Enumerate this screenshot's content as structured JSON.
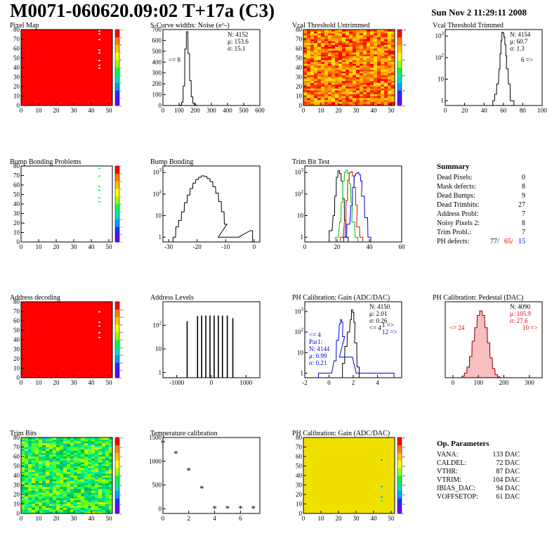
{
  "header": {
    "title": "M0071-060620.09:02 T+17a (C3)",
    "date": "Sun Nov  2 11:29:11 2008"
  },
  "summary": {
    "title": "Summary",
    "rows": [
      {
        "label": "Dead Pixels:",
        "value": "0"
      },
      {
        "label": "Mask defects:",
        "value": "8"
      },
      {
        "label": "Dead Bumps:",
        "value": "9"
      },
      {
        "label": "Dead Trimbits:",
        "value": "27"
      },
      {
        "label": "Address Probl:",
        "value": "7"
      },
      {
        "label": "Noisy Pixels 2:",
        "value": "8"
      },
      {
        "label": "Trim Probl.:",
        "value": "7"
      }
    ],
    "ph_label": "PH defects:",
    "ph_values": [
      "77/",
      "65/",
      "15"
    ],
    "ph_colors": [
      "#000000",
      "#e00000",
      "#0000e0"
    ]
  },
  "op_params": {
    "title": "Op. Parameters",
    "rows": [
      {
        "label": "VANA:",
        "value": "133 DAC"
      },
      {
        "label": "CALDEL:",
        "value": "72 DAC"
      },
      {
        "label": "VTHR:",
        "value": "87 DAC"
      },
      {
        "label": "VTRIM:",
        "value": "104 DAC"
      },
      {
        "label": "IBIAS_DAC:",
        "value": "94 DAC"
      },
      {
        "label": "VOFFSETOP:",
        "value": "61 DAC"
      }
    ]
  },
  "palette": [
    "#6a00ff",
    "#2a2aff",
    "#00a0ff",
    "#00e0c0",
    "#00ff40",
    "#a0ff00",
    "#ffff00",
    "#ffc000",
    "#ff8000",
    "#ff0000"
  ],
  "chart_data": [
    {
      "type": "heatmap",
      "title": "Pixel Map",
      "xlim": [
        0,
        52
      ],
      "ylim": [
        0,
        80
      ],
      "xticks": [
        "0",
        "10",
        "20",
        "30",
        "40",
        "50"
      ],
      "yticks": [
        "0",
        "10",
        "20",
        "30",
        "40",
        "50",
        "60",
        "70",
        "80"
      ],
      "zticks": [
        "0",
        "1",
        "2",
        "3",
        "4",
        "5",
        "6",
        "7",
        "8",
        "9",
        "10"
      ],
      "fill": "#ff0000",
      "spots": [
        {
          "x": 44,
          "y": 78,
          "c": "#ffffff"
        },
        {
          "x": 44,
          "y": 75,
          "c": "#ffffff"
        },
        {
          "x": 44,
          "y": 69,
          "c": "#ffffff"
        },
        {
          "x": 44,
          "y": 58,
          "c": "#ffffff"
        },
        {
          "x": 44,
          "y": 55,
          "c": "#ffffff"
        },
        {
          "x": 44,
          "y": 47,
          "c": "#ffffff"
        },
        {
          "x": 44,
          "y": 42,
          "c": "#ffffff"
        },
        {
          "x": 44,
          "y": 39,
          "c": "#ffffff"
        }
      ]
    },
    {
      "type": "histogram",
      "title": "S-Curve widths: Noise (e^-)",
      "xlim": [
        0,
        600
      ],
      "ylim": [
        0,
        700
      ],
      "xticks": [
        "0",
        "100",
        "200",
        "300",
        "400",
        "500",
        "600"
      ],
      "yticks": [
        "0",
        "100",
        "200",
        "300",
        "400",
        "500",
        "600",
        "700"
      ],
      "series": [
        {
          "color": "#000000",
          "x": [
            110,
            120,
            130,
            140,
            150,
            160,
            170,
            180,
            190,
            200,
            210
          ],
          "y": [
            3,
            30,
            180,
            520,
            680,
            480,
            230,
            80,
            20,
            5,
            2
          ]
        }
      ],
      "stats": [
        "N: 4152",
        "μ: 153.6",
        "σ: 15.1"
      ],
      "annotations": [
        "<= 8"
      ]
    },
    {
      "type": "heatmap",
      "title": "Vcal Threshold Untrimmed",
      "xlim": [
        0,
        52
      ],
      "ylim": [
        0,
        80
      ],
      "xticks": [
        "0",
        "10",
        "20",
        "30",
        "40",
        "50"
      ],
      "yticks": [
        "0",
        "10",
        "20",
        "30",
        "40",
        "50",
        "60",
        "70",
        "80"
      ],
      "zticks": [
        "20",
        "40",
        "60",
        "80",
        "100",
        "120"
      ],
      "fill": "noise-orange"
    },
    {
      "type": "histogram",
      "title": "Vcal Threshold Trimmed",
      "log": true,
      "xlim": [
        0,
        100
      ],
      "ylim": [
        0.6,
        2000
      ],
      "xticks": [
        "0",
        "20",
        "40",
        "60",
        "80",
        "100"
      ],
      "yticks": [
        "1",
        "10",
        "10^2",
        "10^3"
      ],
      "series": [
        {
          "color": "#000000",
          "x": [
            50,
            52,
            54,
            56,
            57,
            58,
            59,
            60,
            61,
            62,
            63,
            64,
            66,
            68,
            70
          ],
          "y": [
            1,
            2,
            6,
            30,
            150,
            600,
            1500,
            1400,
            900,
            400,
            120,
            30,
            6,
            1,
            1
          ]
        }
      ],
      "stats": [
        "N: 4154",
        "μ: 60.7",
        "σ:  1.3"
      ],
      "annotations": [
        "6 =>"
      ]
    },
    {
      "type": "heatmap",
      "title": "Bump Bonding Problems",
      "xlim": [
        0,
        52
      ],
      "ylim": [
        0,
        80
      ],
      "xticks": [
        "0",
        "10",
        "20",
        "30",
        "40",
        "50"
      ],
      "yticks": [
        "0",
        "10",
        "20",
        "30",
        "40",
        "50",
        "60",
        "70",
        "80"
      ],
      "zticks": [
        "-5",
        "-4",
        "-3",
        "-2",
        "-1",
        "0",
        "1",
        "2",
        "3",
        "4",
        "5"
      ],
      "fill": "#ffffff",
      "spots": [
        {
          "x": 44,
          "y": 77,
          "c": "#00ff40"
        },
        {
          "x": 44,
          "y": 69,
          "c": "#00ff40"
        },
        {
          "x": 44,
          "y": 58,
          "c": "#00ff40"
        },
        {
          "x": 44,
          "y": 54,
          "c": "#00ff40"
        },
        {
          "x": 44,
          "y": 46,
          "c": "#00ff40"
        },
        {
          "x": 44,
          "y": 42,
          "c": "#00ff40"
        },
        {
          "x": 1,
          "y": 19,
          "c": "#00ff40"
        }
      ]
    },
    {
      "type": "histogram",
      "title": "Bump Bonding",
      "log": true,
      "xlim": [
        -32,
        2
      ],
      "ylim": [
        0.6,
        2000
      ],
      "xticks": [
        "-30",
        "-20",
        "-10",
        "0"
      ],
      "yticks": [
        "1",
        "10",
        "10^2",
        "10^3"
      ],
      "series": [
        {
          "color": "#000000",
          "x": [
            -28,
            -27,
            -26,
            -25,
            -24,
            -23,
            -22,
            -21,
            -20,
            -19,
            -18,
            -17,
            -16,
            -15,
            -14,
            -13,
            -12,
            -11,
            -10,
            -9,
            -1
          ],
          "y": [
            1,
            3,
            6,
            15,
            40,
            90,
            180,
            320,
            480,
            600,
            700,
            650,
            520,
            380,
            220,
            110,
            45,
            15,
            4,
            1,
            2
          ]
        }
      ]
    },
    {
      "type": "histogram",
      "title": "Trim Bit Test",
      "log": true,
      "xlim": [
        0,
        60
      ],
      "ylim": [
        0.6,
        2000
      ],
      "xticks": [
        "0",
        "20",
        "40",
        "60"
      ],
      "yticks": [
        "1",
        "10",
        "10^2",
        "10^3"
      ],
      "series": [
        {
          "color": "#000000",
          "x": [
            16,
            18,
            19,
            20,
            21,
            22,
            23,
            24,
            25,
            26
          ],
          "y": [
            2,
            10,
            80,
            600,
            1200,
            900,
            400,
            60,
            6,
            1
          ]
        },
        {
          "color": "#00c000",
          "x": [
            20,
            22,
            23,
            24,
            25,
            26,
            27,
            28,
            29,
            30,
            32
          ],
          "y": [
            1,
            5,
            40,
            400,
            1000,
            1300,
            900,
            300,
            40,
            5,
            1
          ]
        },
        {
          "color": "#e00000",
          "x": [
            23,
            25,
            26,
            27,
            28,
            29,
            30,
            31,
            32,
            33,
            35
          ],
          "y": [
            1,
            6,
            50,
            450,
            1000,
            1100,
            700,
            200,
            30,
            3,
            1
          ]
        },
        {
          "color": "#0000e0",
          "x": [
            25,
            27,
            29,
            30,
            31,
            32,
            33,
            34,
            35,
            36,
            38,
            40
          ],
          "y": [
            1,
            4,
            30,
            200,
            700,
            900,
            1000,
            800,
            400,
            80,
            8,
            1
          ]
        }
      ]
    },
    {
      "type": "heatmap",
      "title": "Address decoding",
      "xlim": [
        0,
        52
      ],
      "ylim": [
        0,
        80
      ],
      "xticks": [
        "0",
        "10",
        "20",
        "30",
        "40",
        "50"
      ],
      "yticks": [
        "0",
        "10",
        "20",
        "30",
        "40",
        "50",
        "60",
        "70",
        "80"
      ],
      "zticks": [
        "0",
        "0.1",
        "0.2",
        "0.3",
        "0.4",
        "0.5",
        "0.6",
        "0.7",
        "0.8",
        "0.9",
        "1"
      ],
      "fill": "#ff0000",
      "spots": [
        {
          "x": 44,
          "y": 69,
          "c": "#ffffff"
        },
        {
          "x": 44,
          "y": 58,
          "c": "#ffffff"
        },
        {
          "x": 44,
          "y": 54,
          "c": "#ffffff"
        },
        {
          "x": 44,
          "y": 47,
          "c": "#ffffff"
        },
        {
          "x": 44,
          "y": 42,
          "c": "#ffffff"
        }
      ]
    },
    {
      "type": "histogram",
      "title": "Address Levels",
      "log": true,
      "xlim": [
        -1400,
        1400
      ],
      "ylim": [
        0.6,
        1000
      ],
      "xticks": [
        "-1000",
        "0",
        "1000"
      ],
      "yticks": [
        "1",
        "10",
        "10^2"
      ],
      "series": [
        {
          "color": "#000000",
          "x": [
            -700,
            -400,
            -280,
            -160,
            -40,
            80,
            200,
            320,
            460,
            620
          ],
          "y": [
            150,
            250,
            260,
            260,
            260,
            260,
            260,
            260,
            260,
            200
          ]
        }
      ]
    },
    {
      "type": "histogram",
      "title": "PH Calibration: Gain (ADC/DAC)",
      "log": true,
      "xlim": [
        -2,
        6
      ],
      "ylim": [
        0.6,
        3000
      ],
      "xticks": [
        "-2",
        "0",
        "2",
        "4"
      ],
      "yticks": [
        "1",
        "10",
        "10^2",
        "10^3"
      ],
      "series": [
        {
          "color": "#000000",
          "x": [
            1.2,
            1.4,
            1.6,
            1.8,
            1.9,
            2.0,
            2.1,
            2.2,
            2.4
          ],
          "y": [
            3,
            20,
            100,
            400,
            1200,
            900,
            300,
            30,
            2
          ]
        },
        {
          "color": "#0000e0",
          "x": [
            -0.6,
            0.0,
            0.5,
            0.7,
            0.9,
            1.0,
            1.1,
            1.2,
            1.4,
            2.6,
            3.4,
            4.2,
            5.1
          ],
          "y": [
            1,
            1,
            4,
            40,
            250,
            400,
            300,
            60,
            6,
            1,
            1,
            1,
            1
          ]
        }
      ],
      "stats": [
        "N: 4150",
        "μ: 2.01",
        "σ: 0.26",
        "<= 4"
      ],
      "stats2": [
        "<= 4",
        "Par1:",
        "N: 4144",
        "μ: 0.99",
        "σ: 0.21"
      ],
      "annotations": [
        "1 =>",
        "12 =>"
      ]
    },
    {
      "type": "histogram",
      "title": "PH Calibration: Pedestal (DAC)",
      "xlim": [
        -30,
        350
      ],
      "ylim": [
        0,
        100
      ],
      "xticks": [
        "0",
        "100",
        "200",
        "300"
      ],
      "yticks": [],
      "series": [
        {
          "color": "#000000",
          "x": [
            40,
            50,
            60,
            70,
            80,
            90,
            100,
            110,
            120,
            130,
            140,
            150,
            160,
            170,
            180
          ],
          "y": [
            2,
            6,
            14,
            28,
            48,
            66,
            82,
            88,
            82,
            66,
            46,
            26,
            12,
            4,
            1
          ]
        },
        {
          "color": "#e00000",
          "x": [
            40,
            50,
            60,
            70,
            80,
            90,
            100,
            110,
            120,
            130,
            140,
            150,
            160,
            170,
            180
          ],
          "y": [
            2,
            6,
            14,
            28,
            48,
            66,
            82,
            88,
            82,
            66,
            46,
            26,
            12,
            4,
            1
          ]
        }
      ],
      "stats": [
        "N: 4090"
      ],
      "stats_red": [
        "μ: 105.9",
        "σ: 27.6"
      ],
      "annotations": [
        "<= 24",
        "10 =>"
      ]
    },
    {
      "type": "heatmap",
      "title": "Trim Bits",
      "xlim": [
        0,
        52
      ],
      "ylim": [
        0,
        80
      ],
      "xticks": [
        "0",
        "10",
        "20",
        "30",
        "40",
        "50"
      ],
      "yticks": [
        "0",
        "10",
        "20",
        "30",
        "40",
        "50",
        "60",
        "70",
        "80"
      ],
      "zticks": [
        "0",
        "2",
        "4",
        "6",
        "8",
        "10",
        "12",
        "14",
        "16"
      ],
      "fill": "noise-green"
    },
    {
      "type": "scatter",
      "title": "Temperature calibration",
      "xlim": [
        0,
        7.5
      ],
      "ylim": [
        -100,
        1500
      ],
      "xticks": [
        "0",
        "2",
        "4",
        "6"
      ],
      "yticks": [
        "0",
        "500",
        "1000",
        "1500"
      ],
      "x": [
        0,
        1,
        2,
        3,
        4,
        5,
        6,
        7
      ],
      "y": [
        1380,
        1150,
        800,
        420,
        0,
        0,
        0,
        0
      ]
    },
    {
      "type": "heatmap",
      "title": "PH Calibration: Gain (ADC/DAC)",
      "xlim": [
        0,
        52
      ],
      "ylim": [
        0,
        80
      ],
      "xticks": [
        "0",
        "10",
        "20",
        "30",
        "40",
        "50"
      ],
      "yticks": [
        "0",
        "10",
        "20",
        "30",
        "40",
        "50",
        "60",
        "70",
        "80"
      ],
      "zticks": [
        "0",
        "10",
        "20",
        "30",
        "40",
        "50",
        "60",
        "70",
        "80"
      ],
      "fill": "#f0e000",
      "spots": [
        {
          "x": 44,
          "y": 56,
          "c": "#00c000"
        },
        {
          "x": 44,
          "y": 28,
          "c": "#00a0ff"
        },
        {
          "x": 44,
          "y": 17,
          "c": "#00a0ff"
        },
        {
          "x": 44,
          "y": 13,
          "c": "#00ff40"
        }
      ]
    }
  ]
}
